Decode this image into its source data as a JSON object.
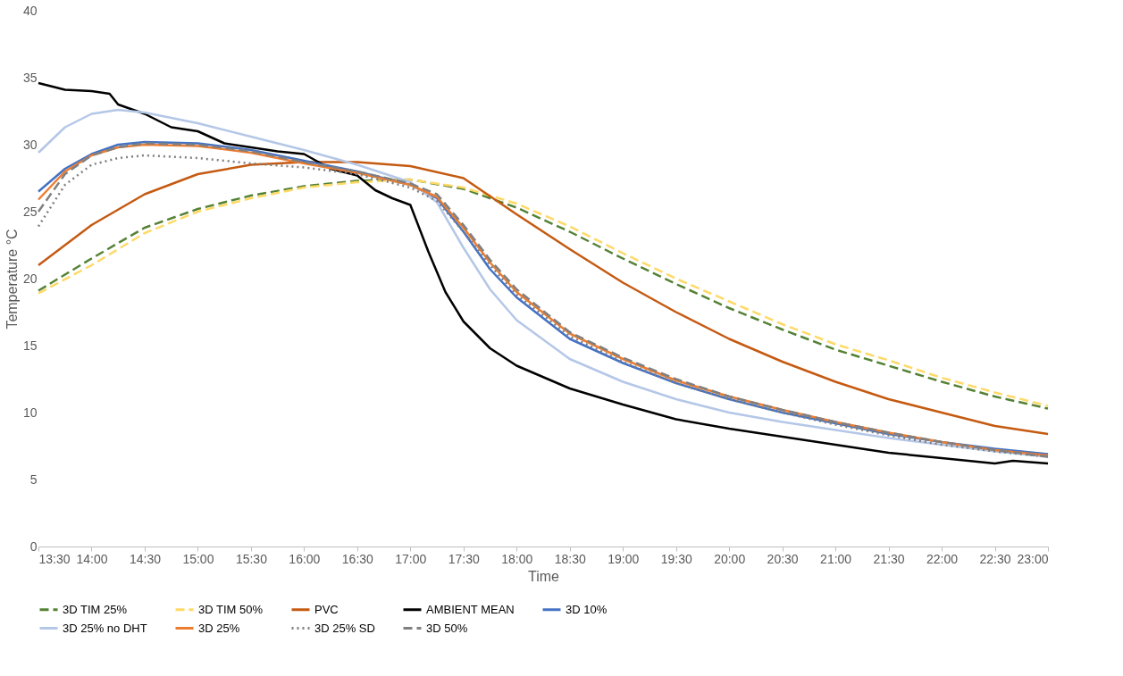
{
  "chart_data": {
    "type": "line",
    "xlabel": "Time",
    "ylabel": "Temperature °C",
    "ylim": [
      0,
      40
    ],
    "yticks": [
      0,
      5,
      10,
      15,
      20,
      25,
      30,
      35,
      40
    ],
    "xlim": [
      13.5,
      23
    ],
    "xticks": [
      {
        "value": 13.5,
        "label": "13:30"
      },
      {
        "value": 14,
        "label": "14:00"
      },
      {
        "value": 14.5,
        "label": "14:30"
      },
      {
        "value": 15,
        "label": "15:00"
      },
      {
        "value": 15.5,
        "label": "15:30"
      },
      {
        "value": 16,
        "label": "16:00"
      },
      {
        "value": 16.5,
        "label": "16:30"
      },
      {
        "value": 17,
        "label": "17:00"
      },
      {
        "value": 17.5,
        "label": "17:30"
      },
      {
        "value": 18,
        "label": "18:00"
      },
      {
        "value": 18.5,
        "label": "18:30"
      },
      {
        "value": 19,
        "label": "19:00"
      },
      {
        "value": 19.5,
        "label": "19:30"
      },
      {
        "value": 20,
        "label": "20:00"
      },
      {
        "value": 20.5,
        "label": "20:30"
      },
      {
        "value": 21,
        "label": "21:00"
      },
      {
        "value": 21.5,
        "label": "21:30"
      },
      {
        "value": 22,
        "label": "22:00"
      },
      {
        "value": 22.5,
        "label": "22:30"
      },
      {
        "value": 23,
        "label": "23:00"
      }
    ],
    "grid": false,
    "legend": "bottom",
    "marker": "none",
    "series": [
      {
        "name": "3D TIM 25%",
        "color": "#548235",
        "line_style": "dashed",
        "x": [
          13.5,
          14,
          14.5,
          15,
          15.5,
          16,
          16.5,
          17,
          17.5,
          18,
          18.5,
          19,
          19.5,
          20,
          20.5,
          21,
          21.5,
          22,
          22.5,
          23
        ],
        "values": [
          19.1,
          21.5,
          23.8,
          25.2,
          26.2,
          26.9,
          27.3,
          27.4,
          26.7,
          25.3,
          23.5,
          21.5,
          19.6,
          17.8,
          16.2,
          14.7,
          13.5,
          12.3,
          11.2,
          10.3
        ]
      },
      {
        "name": "3D TIM 50%",
        "color": "#ffd966",
        "line_style": "dashed",
        "x": [
          13.5,
          14,
          14.5,
          15,
          15.5,
          16,
          16.5,
          17,
          17.5,
          18,
          18.5,
          19,
          19.5,
          20,
          20.5,
          21,
          21.5,
          22,
          22.5,
          23
        ],
        "values": [
          18.9,
          21.0,
          23.4,
          25.0,
          26.0,
          26.8,
          27.2,
          27.4,
          26.8,
          25.6,
          23.9,
          21.9,
          20.0,
          18.3,
          16.6,
          15.1,
          13.9,
          12.6,
          11.5,
          10.5
        ]
      },
      {
        "name": "PVC",
        "color": "#c55a11",
        "line_style": "solid",
        "x": [
          13.5,
          14,
          14.5,
          15,
          15.5,
          16,
          16.5,
          17,
          17.5,
          18,
          18.5,
          19,
          19.5,
          20,
          20.5,
          21,
          21.5,
          22,
          22.5,
          23
        ],
        "values": [
          21.0,
          24.0,
          26.3,
          27.8,
          28.5,
          28.7,
          28.7,
          28.4,
          27.5,
          24.8,
          22.2,
          19.7,
          17.5,
          15.5,
          13.8,
          12.3,
          11.0,
          10.0,
          9.0,
          8.4
        ]
      },
      {
        "name": "AMBIENT MEAN",
        "color": "#000000",
        "line_style": "solid",
        "x": [
          13.5,
          13.75,
          14,
          14.17,
          14.25,
          14.5,
          14.75,
          15,
          15.25,
          15.5,
          15.75,
          16,
          16.25,
          16.5,
          16.67,
          16.83,
          17,
          17.17,
          17.33,
          17.5,
          17.75,
          18,
          18.5,
          19,
          19.5,
          20,
          20.5,
          21,
          21.5,
          22,
          22.5,
          22.67,
          23
        ],
        "values": [
          34.6,
          34.1,
          34.0,
          33.8,
          33.0,
          32.3,
          31.3,
          31.0,
          30.1,
          29.8,
          29.5,
          29.3,
          28.2,
          27.7,
          26.6,
          26.0,
          25.5,
          22.0,
          19.0,
          16.8,
          14.8,
          13.5,
          11.8,
          10.6,
          9.5,
          8.8,
          8.2,
          7.6,
          7.0,
          6.6,
          6.2,
          6.4,
          6.2
        ]
      },
      {
        "name": "3D 10%",
        "color": "#4472c4",
        "line_style": "solid",
        "x": [
          13.5,
          13.75,
          14,
          14.25,
          14.5,
          15,
          15.5,
          16,
          16.5,
          17,
          17.25,
          17.5,
          17.75,
          18,
          18.5,
          19,
          19.5,
          20,
          20.5,
          21,
          21.5,
          22,
          22.5,
          23
        ],
        "values": [
          26.5,
          28.2,
          29.3,
          30.0,
          30.2,
          30.1,
          29.6,
          28.8,
          28.0,
          27.0,
          26.0,
          23.5,
          20.7,
          18.6,
          15.5,
          13.7,
          12.2,
          11.0,
          10.0,
          9.2,
          8.4,
          7.8,
          7.3,
          6.9
        ]
      },
      {
        "name": "3D 25% no DHT",
        "color": "#b4c7e7",
        "line_style": "solid",
        "x": [
          13.5,
          13.75,
          14,
          14.25,
          14.5,
          15,
          15.5,
          16,
          16.5,
          17,
          17.25,
          17.5,
          17.75,
          18,
          18.5,
          19,
          19.5,
          20,
          20.5,
          21,
          21.5,
          22,
          22.5,
          23
        ],
        "values": [
          29.4,
          31.3,
          32.3,
          32.6,
          32.4,
          31.6,
          30.6,
          29.6,
          28.5,
          27.2,
          25.7,
          22.3,
          19.2,
          16.9,
          14.0,
          12.3,
          11.0,
          10.0,
          9.3,
          8.7,
          8.1,
          7.6,
          7.1,
          6.7
        ]
      },
      {
        "name": "3D 25%",
        "color": "#ed7d31",
        "line_style": "solid",
        "x": [
          13.5,
          13.75,
          14,
          14.25,
          14.5,
          15,
          15.5,
          16,
          16.5,
          17,
          17.25,
          17.5,
          17.75,
          18,
          18.5,
          19,
          19.5,
          20,
          20.5,
          21,
          21.5,
          22,
          22.5,
          23
        ],
        "values": [
          25.9,
          28.0,
          29.2,
          29.8,
          30.0,
          29.9,
          29.4,
          28.6,
          27.9,
          27.0,
          26.1,
          23.8,
          21.2,
          19.0,
          15.9,
          14.0,
          12.4,
          11.2,
          10.2,
          9.3,
          8.5,
          7.8,
          7.2,
          6.8
        ]
      },
      {
        "name": "3D 25% SD",
        "color": "#7f7f7f",
        "line_style": "dotted",
        "x": [
          13.5,
          13.75,
          14,
          14.25,
          14.5,
          15,
          15.5,
          16,
          16.5,
          17,
          17.25,
          17.5,
          17.75,
          18,
          18.5,
          19,
          19.5,
          20,
          20.5,
          21,
          21.5,
          22,
          22.5,
          23
        ],
        "values": [
          23.9,
          27.0,
          28.5,
          29.0,
          29.2,
          29.0,
          28.6,
          28.3,
          27.8,
          26.8,
          25.8,
          23.5,
          21.0,
          18.8,
          15.7,
          13.8,
          12.2,
          11.0,
          10.0,
          9.1,
          8.3,
          7.6,
          7.1,
          6.7
        ]
      },
      {
        "name": "3D 50%",
        "color": "#808080",
        "line_style": "dashed",
        "x": [
          13.5,
          13.75,
          14,
          14.25,
          14.5,
          15,
          15.5,
          16,
          16.5,
          17,
          17.25,
          17.5,
          17.75,
          18,
          18.5,
          19,
          19.5,
          20,
          20.5,
          21,
          21.5,
          22,
          22.5,
          23
        ],
        "values": [
          25.0,
          27.8,
          29.2,
          29.8,
          30.1,
          30.0,
          29.5,
          28.7,
          28.0,
          27.1,
          26.3,
          24.0,
          21.4,
          19.2,
          16.0,
          14.1,
          12.5,
          11.2,
          10.2,
          9.3,
          8.5,
          7.8,
          7.2,
          6.7
        ]
      }
    ]
  }
}
